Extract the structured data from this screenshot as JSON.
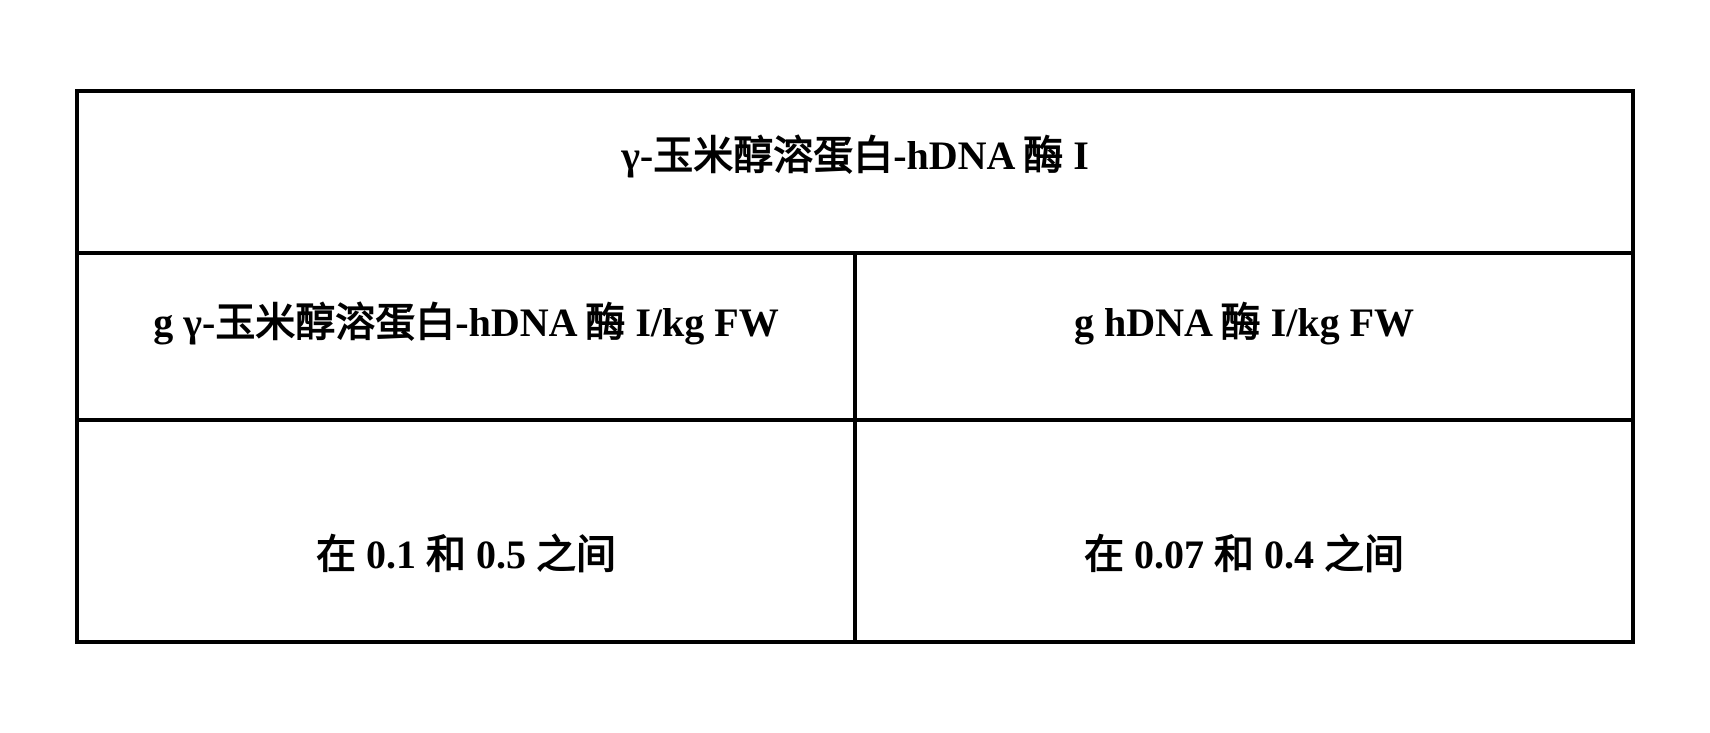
{
  "table": {
    "title": "γ-玉米醇溶蛋白-hDNA 酶 I",
    "headers": {
      "col1": "g γ-玉米醇溶蛋白-hDNA 酶 I/kg FW",
      "col2": "g hDNA 酶 I/kg FW"
    },
    "data": {
      "col1": "在 0.1 和 0.5 之间",
      "col2": "在 0.07 和 0.4 之间"
    }
  },
  "styling": {
    "border_color": "#000000",
    "border_width": 4,
    "background_color": "#ffffff",
    "text_color": "#000000",
    "title_fontsize": 40,
    "header_fontsize": 40,
    "data_fontsize": 40,
    "font_weight": "bold",
    "font_family": "SimSun, 宋体, serif"
  }
}
